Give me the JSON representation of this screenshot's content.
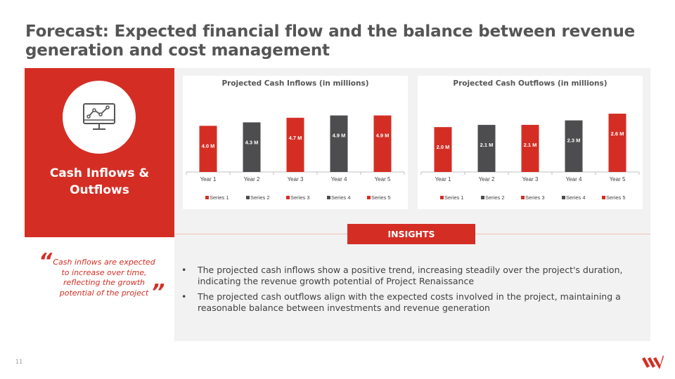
{
  "slide": {
    "title": "Forecast: Expected financial flow and the balance between revenue generation and cost management",
    "page_number": "11"
  },
  "left_panel": {
    "icon": "monitor-line-chart-icon",
    "heading": "Cash Inflows &\nOutflows",
    "quote": "Cash inflows are expected to increase over time, reflecting the growth potential of the project",
    "quote_open": "“",
    "quote_close": "”"
  },
  "insights": {
    "label": "INSIGHTS",
    "bullets": [
      "The projected cash inflows show a positive trend, increasing steadily over the project's duration, indicating the revenue growth potential of Project Renaissance",
      "The projected cash outflows align with the expected costs involved in the project, maintaining a reasonable balance between investments and revenue generation"
    ]
  },
  "colors": {
    "accent_red": "#d42e24",
    "series_gray": "#4d4d4f",
    "panel_gray": "#f2f2f2",
    "title_gray": "#555555"
  },
  "chart_data": [
    {
      "type": "bar",
      "title": "Projected Cash Inflows (in millions)",
      "categories": [
        "Year 1",
        "Year 2",
        "Year 3",
        "Year 4",
        "Year 5"
      ],
      "values": [
        4.0,
        4.3,
        4.7,
        4.9,
        4.9
      ],
      "data_labels": [
        "4.0 M",
        "4.3 M",
        "4.7 M",
        "4.9 M",
        "4.9 M"
      ],
      "series": [
        {
          "name": "Series 1",
          "color": "#d42e24"
        },
        {
          "name": "Series 2",
          "color": "#4d4d4f"
        },
        {
          "name": "Series 3",
          "color": "#d42e24"
        },
        {
          "name": "Series 4",
          "color": "#4d4d4f"
        },
        {
          "name": "Series 5",
          "color": "#d42e24"
        }
      ],
      "ylim": [
        0,
        5.6
      ],
      "legend": "bottom",
      "grid": false
    },
    {
      "type": "bar",
      "title": "Projected Cash Outflows (in millions)",
      "categories": [
        "Year 1",
        "Year 2",
        "Year 3",
        "Year 4",
        "Year 5"
      ],
      "values": [
        2.0,
        2.1,
        2.1,
        2.3,
        2.6
      ],
      "data_labels": [
        "2.0 M",
        "2.1 M",
        "2.1 M",
        "2.3 M",
        "2.6 M"
      ],
      "series": [
        {
          "name": "Series 1",
          "color": "#d42e24"
        },
        {
          "name": "Series 2",
          "color": "#4d4d4f"
        },
        {
          "name": "Series 3",
          "color": "#d42e24"
        },
        {
          "name": "Series 4",
          "color": "#4d4d4f"
        },
        {
          "name": "Series 5",
          "color": "#d42e24"
        }
      ],
      "ylim": [
        0,
        2.88
      ],
      "legend": "bottom",
      "grid": false
    }
  ]
}
